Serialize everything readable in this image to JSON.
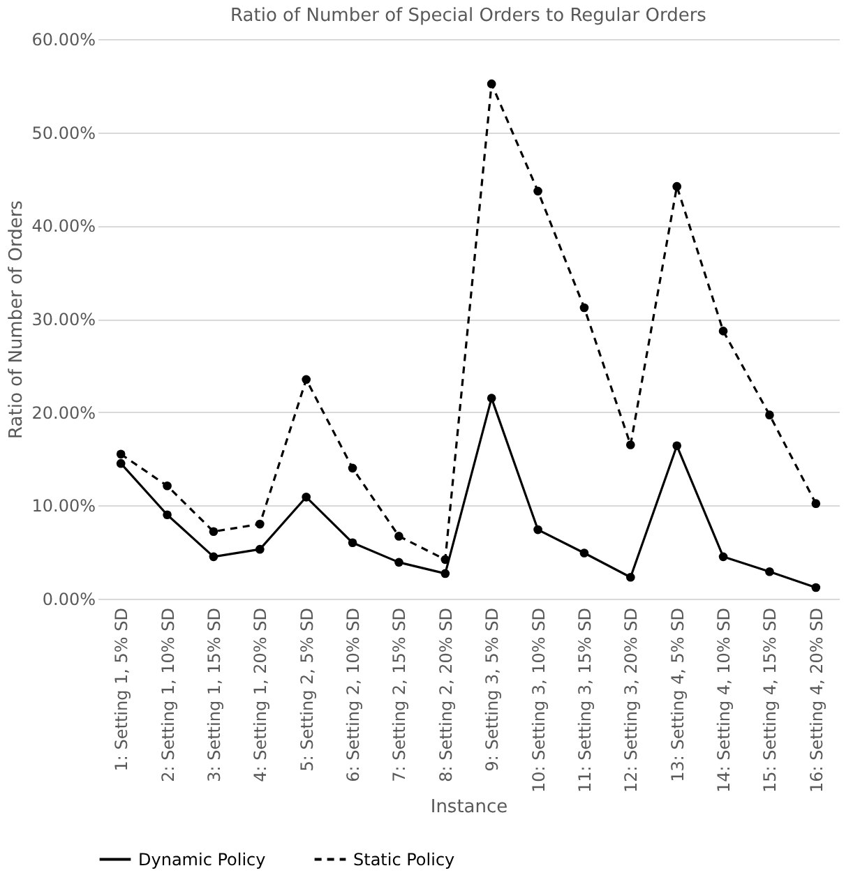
{
  "chart_data": {
    "type": "line",
    "title": "Ratio of Number of Special Orders to Regular Orders",
    "xlabel": "Instance",
    "ylabel": "Ratio of Number of Orders",
    "categories": [
      "1: Setting 1, 5% SD",
      "2: Setting 1, 10% SD",
      "3: Setting 1, 15% SD",
      "4: Setting 1, 20% SD",
      "5: Setting 2, 5% SD",
      "6: Setting 2, 10% SD",
      "7: Setting 2, 15% SD",
      "8: Setting 2, 20% SD",
      "9: Setting 3, 5% SD",
      "10: Setting 3, 10% SD",
      "11: Setting 3, 15% SD",
      "12: Setting 3, 20% SD",
      "13: Setting 4, 5% SD",
      "14: Setting 4, 10% SD",
      "15: Setting 4, 15% SD",
      "16: Setting 4, 20% SD"
    ],
    "series": [
      {
        "name": "Dynamic Policy",
        "color": "#000000",
        "line_style": "solid",
        "values": [
          14.5,
          9.0,
          4.5,
          5.3,
          10.9,
          6.0,
          3.9,
          2.7,
          21.5,
          7.4,
          4.9,
          2.3,
          16.4,
          4.5,
          2.9,
          1.2
        ]
      },
      {
        "name": "Static Policy",
        "color": "#000000",
        "line_style": "dashed",
        "values": [
          15.5,
          12.1,
          7.2,
          8.0,
          23.5,
          14.0,
          6.7,
          4.2,
          55.2,
          43.7,
          31.2,
          16.5,
          44.2,
          28.7,
          19.7,
          10.2
        ]
      }
    ],
    "ylim": [
      0,
      60
    ],
    "yticks": [
      {
        "value": 0,
        "label": "0.00%"
      },
      {
        "value": 10,
        "label": "10.00%"
      },
      {
        "value": 20,
        "label": "20.00%"
      },
      {
        "value": 30,
        "label": "30.00%"
      },
      {
        "value": 40,
        "label": "40.00%"
      },
      {
        "value": 50,
        "label": "50.00%"
      },
      {
        "value": 60,
        "label": "60.00%"
      }
    ],
    "grid": "y",
    "legend": "bottom",
    "marker": "circle"
  }
}
